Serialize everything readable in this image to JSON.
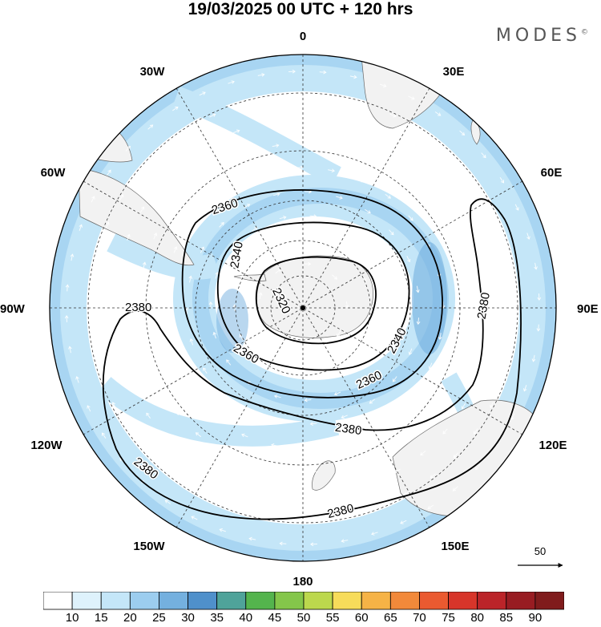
{
  "title": "19/03/2025  00 UTC  + 120 hrs",
  "brand": "MODES",
  "brand_mark": "©",
  "map": {
    "projection": "south-polar-stereographic",
    "longitude_labels": [
      "0",
      "30E",
      "60E",
      "90E",
      "120E",
      "150E",
      "180",
      "150W",
      "120W",
      "90W",
      "60W",
      "30W"
    ],
    "contour_labels": [
      "2320",
      "2340",
      "2340",
      "2360",
      "2360",
      "2360",
      "2380",
      "2380",
      "2380",
      "2380",
      "2380"
    ],
    "contour_color": "#000000",
    "land_color": "#f2f2f2",
    "wind_vector_color": "#ffffff"
  },
  "reference_vector": {
    "value": "50",
    "color": "#000000"
  },
  "colorbar": {
    "ticks": [
      "10",
      "15",
      "20",
      "25",
      "30",
      "35",
      "40",
      "45",
      "50",
      "55",
      "60",
      "65",
      "70",
      "75",
      "80",
      "85",
      "90"
    ],
    "colors": [
      "#ffffff",
      "#def2fc",
      "#c4e6f8",
      "#9ccdef",
      "#74b0df",
      "#4f90cb",
      "#4fa39a",
      "#54b44d",
      "#84c64a",
      "#bcd84d",
      "#f7dc5a",
      "#f6b346",
      "#f2893a",
      "#ea5a30",
      "#d7352a",
      "#bb2429",
      "#981c22",
      "#801b1c"
    ]
  }
}
